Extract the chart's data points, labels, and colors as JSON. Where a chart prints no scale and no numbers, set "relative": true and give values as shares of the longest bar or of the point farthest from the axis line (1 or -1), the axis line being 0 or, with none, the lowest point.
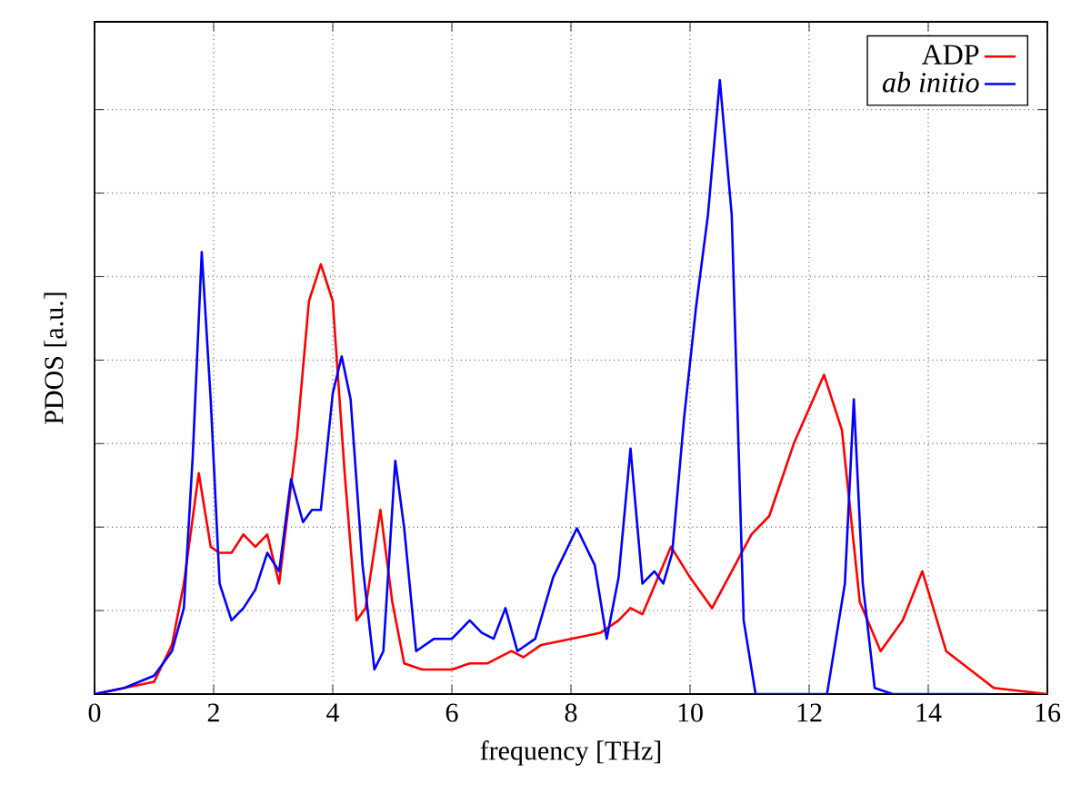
{
  "chart_data": {
    "type": "line",
    "xlabel": "frequency [THz]",
    "ylabel": "PDOS [a.u.]",
    "relative": true,
    "xlim": [
      0,
      16
    ],
    "xticks": [
      0,
      2,
      4,
      6,
      8,
      10,
      12,
      14,
      16
    ],
    "grid": true,
    "legend": "top right",
    "series": [
      {
        "name": "ADP",
        "color": "#ff0000",
        "x": [
          0,
          1.0,
          1.3,
          1.5,
          1.75,
          1.95,
          2.1,
          2.3,
          2.5,
          2.7,
          2.9,
          3.1,
          3.4,
          3.6,
          3.8,
          4.0,
          4.2,
          4.4,
          4.55,
          4.8,
          5.0,
          5.2,
          5.5,
          6.0,
          6.3,
          6.6,
          7.0,
          7.2,
          7.5,
          8.0,
          8.5,
          8.8,
          9.0,
          9.2,
          9.68,
          10.0,
          10.37,
          11.03,
          11.33,
          11.75,
          12.25,
          12.55,
          12.85,
          13.2,
          13.57,
          13.9,
          14.3,
          15.1,
          16
        ],
        "values": [
          0,
          0.02,
          0.08,
          0.18,
          0.36,
          0.24,
          0.23,
          0.23,
          0.26,
          0.24,
          0.26,
          0.18,
          0.42,
          0.64,
          0.7,
          0.64,
          0.36,
          0.12,
          0.14,
          0.3,
          0.15,
          0.05,
          0.04,
          0.04,
          0.05,
          0.05,
          0.07,
          0.06,
          0.08,
          0.09,
          0.1,
          0.12,
          0.14,
          0.13,
          0.24,
          0.19,
          0.14,
          0.26,
          0.29,
          0.41,
          0.52,
          0.43,
          0.15,
          0.07,
          0.12,
          0.2,
          0.07,
          0.01,
          0
        ]
      },
      {
        "name": "*ab initio*",
        "color": "#0000ff",
        "x": [
          0,
          0.5,
          1.0,
          1.3,
          1.5,
          1.65,
          1.8,
          1.95,
          2.1,
          2.3,
          2.5,
          2.7,
          2.9,
          3.1,
          3.3,
          3.5,
          3.65,
          3.8,
          4.0,
          4.15,
          4.3,
          4.5,
          4.7,
          4.85,
          5.05,
          5.2,
          5.4,
          5.7,
          6.0,
          6.3,
          6.5,
          6.7,
          6.9,
          7.1,
          7.4,
          7.7,
          8.1,
          8.4,
          8.6,
          8.8,
          9.0,
          9.2,
          9.4,
          9.55,
          9.7,
          9.9,
          10.1,
          10.3,
          10.5,
          10.7,
          10.9,
          11.1,
          12.3,
          12.6,
          12.75,
          12.9,
          13.1,
          13.4,
          15
        ],
        "values": [
          0,
          0.01,
          0.03,
          0.07,
          0.14,
          0.39,
          0.72,
          0.48,
          0.18,
          0.12,
          0.14,
          0.17,
          0.23,
          0.2,
          0.35,
          0.28,
          0.3,
          0.3,
          0.49,
          0.55,
          0.48,
          0.21,
          0.04,
          0.07,
          0.38,
          0.27,
          0.07,
          0.09,
          0.09,
          0.12,
          0.1,
          0.09,
          0.14,
          0.07,
          0.09,
          0.19,
          0.27,
          0.21,
          0.09,
          0.19,
          0.4,
          0.18,
          0.2,
          0.18,
          0.23,
          0.45,
          0.63,
          0.78,
          1,
          0.78,
          0.12,
          0,
          0,
          0.18,
          0.48,
          0.18,
          0.01,
          0,
          0
        ]
      }
    ]
  }
}
